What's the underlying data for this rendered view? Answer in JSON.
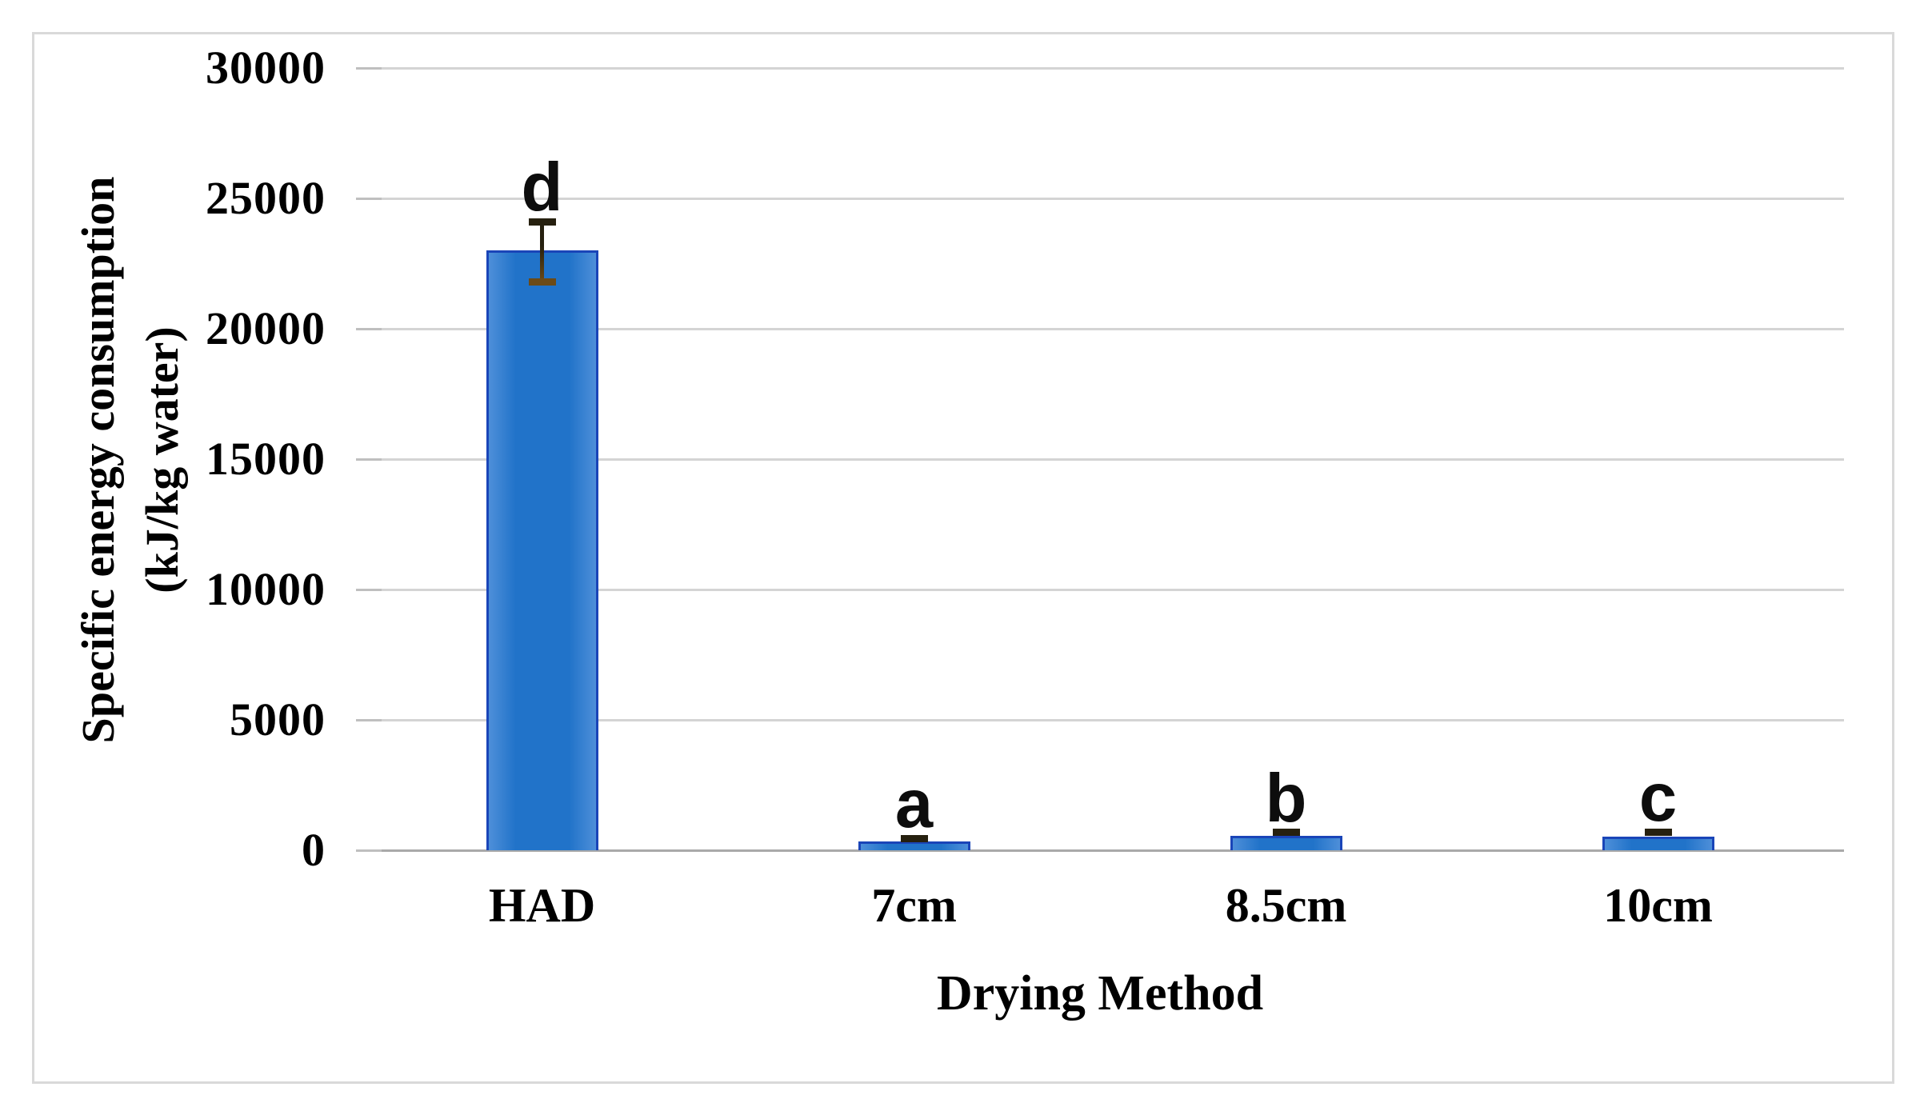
{
  "figure": {
    "x_title": "Drying Method",
    "y_title_line1": "Specific energy consumption",
    "y_title_line2": "(kJ/kg water)"
  },
  "chart_data": {
    "type": "bar",
    "title": "",
    "xlabel": "Drying Method",
    "ylabel": "Specific energy consumption (kJ/kg water)",
    "ylabel_lines": [
      "Specific energy consumption",
      "(kJ/kg water)"
    ],
    "categories": [
      "HAD",
      "7cm",
      "8.5cm",
      "10cm"
    ],
    "values": [
      23000,
      340,
      560,
      530
    ],
    "error_plus": [
      1100,
      120,
      120,
      170
    ],
    "error_minus": [
      1200,
      0,
      0,
      0
    ],
    "significance_letters": [
      "d",
      "a",
      "b",
      "c"
    ],
    "ylim": [
      0,
      30000
    ],
    "yticks": [
      0,
      5000,
      10000,
      15000,
      20000,
      25000,
      30000
    ],
    "grid": true,
    "legend_position": "none"
  },
  "colors": {
    "background": "#ffffff",
    "chart_border": "#d9d9d9",
    "gridline": "#d4d4d4",
    "axis_line": "#a9a9a9",
    "tick_stub": "#bfbfbf",
    "bar_fill": "#2173c9",
    "bar_fill_edge": "#4e8fd9",
    "bar_border": "#1a45b8",
    "error_dark": "#26200f",
    "error_brown": "#6b4a17",
    "text": "#000000",
    "letter": "#0d0d0d"
  }
}
